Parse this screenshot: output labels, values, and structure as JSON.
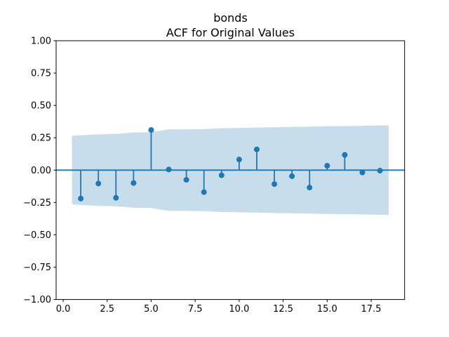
{
  "window": {
    "background": "#ffffff"
  },
  "chart_data": {
    "type": "stem",
    "title_line1": "bonds",
    "title_line2": "ACF for Original Values",
    "xlabel": "",
    "ylabel": "",
    "grid": false,
    "xlim": [
      -0.4,
      19.4
    ],
    "ylim": [
      -1.0,
      1.0
    ],
    "x": [
      1,
      2,
      3,
      4,
      5,
      6,
      7,
      8,
      9,
      10,
      11,
      12,
      13,
      14,
      15,
      16,
      17,
      18
    ],
    "values": [
      -0.22,
      -0.104,
      -0.214,
      -0.1,
      0.31,
      0.005,
      -0.075,
      -0.17,
      -0.04,
      0.082,
      0.16,
      -0.108,
      -0.047,
      -0.135,
      0.034,
      0.118,
      -0.018,
      -0.004
    ],
    "confidence_band": {
      "x": [
        0.5,
        2,
        3,
        4,
        5,
        6,
        7,
        8,
        9,
        10,
        11,
        12,
        13,
        14,
        15,
        16,
        17,
        18.5
      ],
      "upper": [
        0.266,
        0.276,
        0.28,
        0.291,
        0.293,
        0.315,
        0.316,
        0.317,
        0.324,
        0.326,
        0.328,
        0.332,
        0.334,
        0.336,
        0.339,
        0.34,
        0.343,
        0.346
      ],
      "lower": [
        -0.266,
        -0.276,
        -0.28,
        -0.291,
        -0.293,
        -0.315,
        -0.316,
        -0.317,
        -0.324,
        -0.326,
        -0.328,
        -0.332,
        -0.334,
        -0.336,
        -0.339,
        -0.34,
        -0.343,
        -0.346
      ]
    },
    "xticks": {
      "values": [
        0,
        2.5,
        5,
        7.5,
        10,
        12.5,
        15,
        17.5
      ],
      "labels": [
        "0.0",
        "2.5",
        "5.0",
        "7.5",
        "10.0",
        "12.5",
        "15.0",
        "17.5"
      ]
    },
    "yticks": {
      "values": [
        1.0,
        0.75,
        0.5,
        0.25,
        0.0,
        -0.25,
        -0.5,
        -0.75,
        -1.0
      ],
      "labels": [
        "1.00",
        "0.75",
        "0.50",
        "0.25",
        "0.00",
        "−0.25",
        "−0.50",
        "−0.75",
        "−1.00"
      ]
    },
    "colors": {
      "stem": "#1f77b4",
      "marker": "#1f77b4",
      "baseline": "#1f77b4",
      "band": "#c7ddec",
      "spine": "#000000",
      "tick_label": "#000000",
      "title": "#000000"
    }
  }
}
